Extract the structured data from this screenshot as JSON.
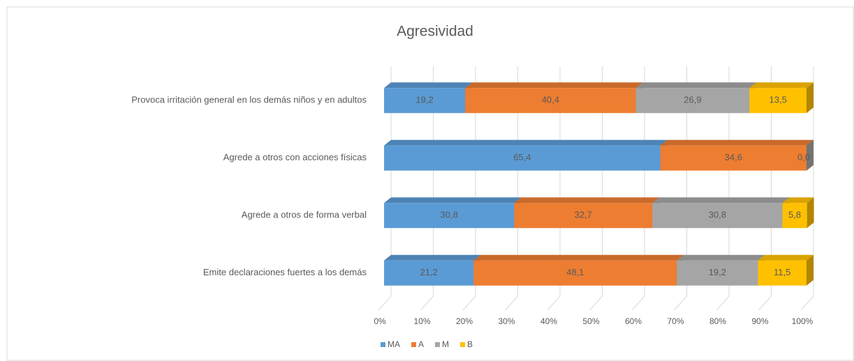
{
  "chart_data": {
    "type": "bar",
    "orientation": "horizontal",
    "stacked": "percent",
    "title": "Agresividad",
    "categories": [
      "Provoca irritación general en los demás niños y en adultos",
      "Agrede a otros con acciones físicas",
      "Agrede a otros de forma verbal",
      "Emite declaraciones fuertes a los demás"
    ],
    "series": [
      {
        "name": "MA",
        "color": "#5b9bd5",
        "values": [
          19.2,
          65.4,
          30.8,
          21.2
        ],
        "value_labels": [
          "19,2",
          "65,4",
          "30,8",
          "21,2"
        ]
      },
      {
        "name": "A",
        "color": "#ed7d31",
        "values": [
          40.4,
          34.6,
          32.7,
          48.1
        ],
        "value_labels": [
          "40,4",
          "34,6",
          "32,7",
          "48,1"
        ]
      },
      {
        "name": "M",
        "color": "#a5a5a5",
        "values": [
          26.9,
          0.0,
          30.8,
          19.2
        ],
        "value_labels": [
          "26,9",
          "0,0",
          "30,8",
          "19,2"
        ]
      },
      {
        "name": "B",
        "color": "#ffc000",
        "values": [
          13.5,
          null,
          5.8,
          11.5
        ],
        "value_labels": [
          "13,5",
          null,
          "5,8",
          "11,5"
        ]
      }
    ],
    "xlim": [
      0,
      100
    ],
    "xticks": [
      {
        "value": 0,
        "label": "0%"
      },
      {
        "value": 10,
        "label": "10%"
      },
      {
        "value": 20,
        "label": "20%"
      },
      {
        "value": 30,
        "label": "30%"
      },
      {
        "value": 40,
        "label": "40%"
      },
      {
        "value": 50,
        "label": "50%"
      },
      {
        "value": 60,
        "label": "60%"
      },
      {
        "value": 70,
        "label": "70%"
      },
      {
        "value": 80,
        "label": "80%"
      },
      {
        "value": 90,
        "label": "90%"
      },
      {
        "value": 100,
        "label": "100%"
      }
    ],
    "grid": true,
    "legend": "bottom"
  }
}
